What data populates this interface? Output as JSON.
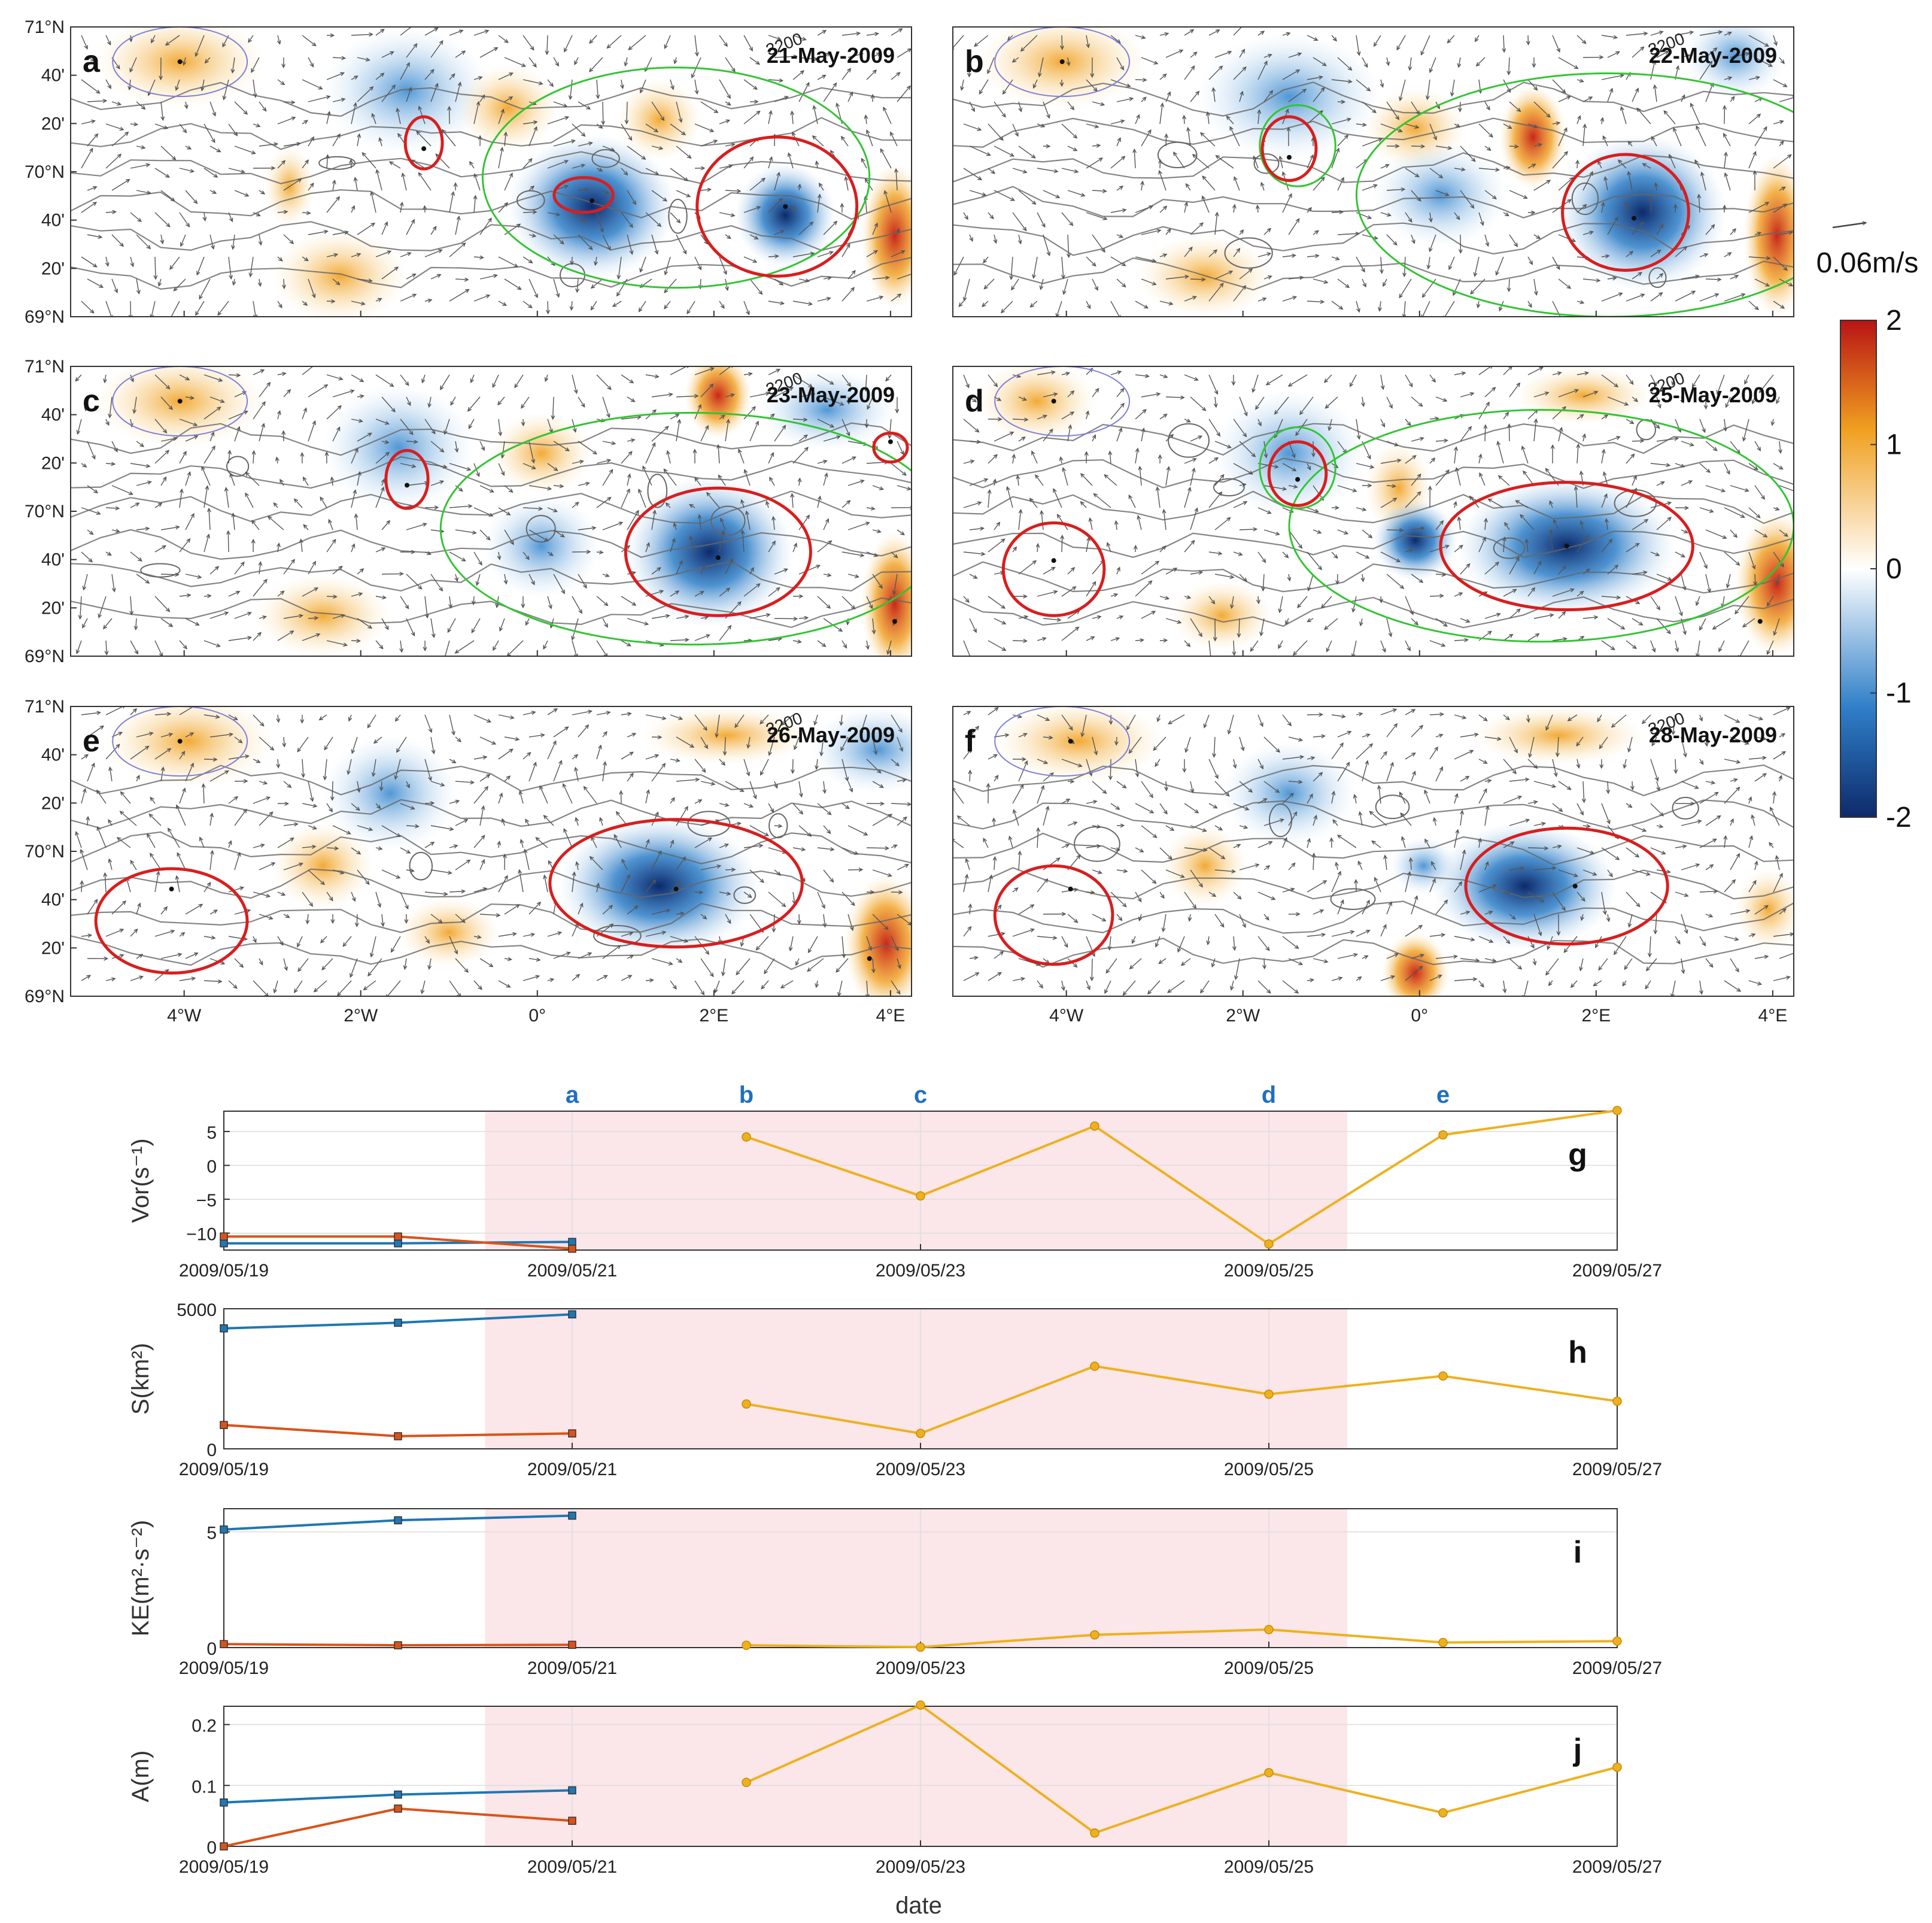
{
  "maps": {
    "panels": [
      {
        "letter": "a",
        "date": "21-May-2009"
      },
      {
        "letter": "b",
        "date": "22-May-2009"
      },
      {
        "letter": "c",
        "date": "23-May-2009"
      },
      {
        "letter": "d",
        "date": "25-May-2009"
      },
      {
        "letter": "e",
        "date": "26-May-2009"
      },
      {
        "letter": "f",
        "date": "28-May-2009"
      }
    ],
    "lat_ticks": [
      "71°N",
      "40'",
      "20'",
      "70°N",
      "40'",
      "20'",
      "69°N"
    ],
    "lon_ticks": [
      "4°W",
      "2°W",
      "0°",
      "2°E",
      "4°E"
    ],
    "contour_label": "3200",
    "colorbar": {
      "ticks": [
        "2",
        "1",
        "0",
        "-1",
        "-2"
      ],
      "range": [
        -2,
        2
      ],
      "colors": [
        "#0d2a6b",
        "#2f7fc8",
        "#ffffff",
        "#f0a020",
        "#b81414"
      ]
    },
    "scale_arrow_label": "0.06m/s"
  },
  "chart_data": {
    "type": "line",
    "dates": [
      "2009/05/19",
      "2009/05/21",
      "2009/05/23",
      "2009/05/25",
      "2009/05/27"
    ],
    "top_markers": [
      {
        "label": "a",
        "day": 2
      },
      {
        "label": "b",
        "day": 3
      },
      {
        "label": "c",
        "day": 4
      },
      {
        "label": "d",
        "day": 6
      },
      {
        "label": "e",
        "day": 7
      }
    ],
    "shaded_range": [
      1.5,
      6.45
    ],
    "xlabel": "date",
    "series_colors": {
      "blue": "#1f77b4",
      "orange": "#d95319",
      "yellow": "#edb120"
    },
    "panels": [
      {
        "letter": "g",
        "ylabel": "Vor(s⁻¹)",
        "ylim": [
          -12.5,
          8
        ],
        "yticks": [
          5,
          0,
          -5,
          -10
        ],
        "yticklabels": [
          "5",
          "0",
          "−5",
          "−10"
        ],
        "series": [
          {
            "x": [
              0,
              1,
              2
            ],
            "y": [
              -11.5,
              -11.5,
              -11.3
            ]
          },
          {
            "x": [
              0,
              1,
              2
            ],
            "y": [
              -10.5,
              -10.5,
              -12.3
            ]
          },
          {
            "x": [
              3,
              4,
              5,
              6,
              7,
              8
            ],
            "y": [
              4.2,
              -4.5,
              5.8,
              -11.6,
              4.5,
              8.1
            ]
          }
        ]
      },
      {
        "letter": "h",
        "ylabel": "S(km²)",
        "ylim": [
          0,
          5000
        ],
        "yticks": [
          5000,
          0
        ],
        "yticklabels": [
          "5000",
          "0"
        ],
        "series": [
          {
            "x": [
              0,
              1,
              2
            ],
            "y": [
              4300,
              4500,
              4800
            ]
          },
          {
            "x": [
              0,
              1,
              2
            ],
            "y": [
              850,
              450,
              550
            ]
          },
          {
            "x": [
              3,
              4,
              5,
              6,
              7,
              8
            ],
            "y": [
              1600,
              550,
              2950,
              1950,
              2600,
              1700
            ]
          }
        ]
      },
      {
        "letter": "i",
        "ylabel": "KE(m²·s⁻²)",
        "ylim": [
          0,
          6
        ],
        "yticks": [
          5,
          0
        ],
        "yticklabels": [
          "5",
          "0"
        ],
        "series": [
          {
            "x": [
              0,
              1,
              2
            ],
            "y": [
              5.1,
              5.5,
              5.7
            ]
          },
          {
            "x": [
              0,
              1,
              2
            ],
            "y": [
              0.15,
              0.1,
              0.12
            ]
          },
          {
            "x": [
              3,
              4,
              5,
              6,
              7,
              8
            ],
            "y": [
              0.1,
              0.02,
              0.55,
              0.78,
              0.22,
              0.28
            ]
          }
        ]
      },
      {
        "letter": "j",
        "ylabel": "A(m)",
        "ylim": [
          0,
          0.23
        ],
        "yticks": [
          0.2,
          0.1,
          0
        ],
        "yticklabels": [
          "0.2",
          "0.1",
          "0"
        ],
        "series": [
          {
            "x": [
              0,
              1,
              2
            ],
            "y": [
              0.072,
              0.085,
              0.092
            ]
          },
          {
            "x": [
              0,
              1,
              2
            ],
            "y": [
              0.0,
              0.062,
              0.042
            ]
          },
          {
            "x": [
              3,
              4,
              5,
              6,
              7,
              8
            ],
            "y": [
              0.105,
              0.232,
              0.022,
              0.121,
              0.055,
              0.13
            ]
          }
        ]
      }
    ]
  }
}
